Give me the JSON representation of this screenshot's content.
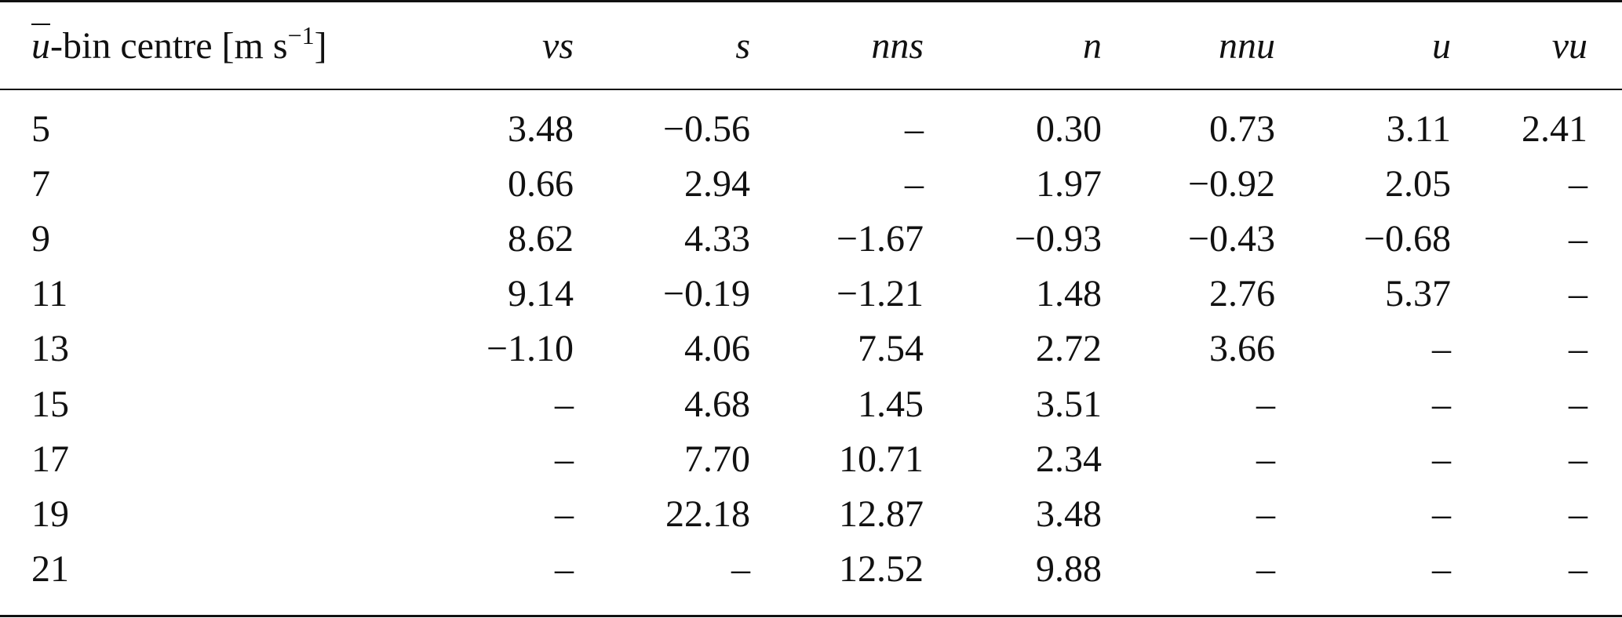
{
  "table": {
    "header": {
      "first": {
        "symbol": "u",
        "text": "-bin centre [m s",
        "exponent": "−1",
        "closing": "]"
      },
      "columns": [
        "vs",
        "s",
        "nns",
        "n",
        "nnu",
        "u",
        "vu"
      ]
    },
    "rows": [
      [
        "5",
        "3.48",
        "−0.56",
        "–",
        "0.30",
        "0.73",
        "3.11",
        "2.41"
      ],
      [
        "7",
        "0.66",
        "2.94",
        "–",
        "1.97",
        "−0.92",
        "2.05",
        "–"
      ],
      [
        "9",
        "8.62",
        "4.33",
        "−1.67",
        "−0.93",
        "−0.43",
        "−0.68",
        "–"
      ],
      [
        "11",
        "9.14",
        "−0.19",
        "−1.21",
        "1.48",
        "2.76",
        "5.37",
        "–"
      ],
      [
        "13",
        "−1.10",
        "4.06",
        "7.54",
        "2.72",
        "3.66",
        "–",
        "–"
      ],
      [
        "15",
        "–",
        "4.68",
        "1.45",
        "3.51",
        "–",
        "–",
        "–"
      ],
      [
        "17",
        "–",
        "7.70",
        "10.71",
        "2.34",
        "–",
        "–",
        "–"
      ],
      [
        "19",
        "–",
        "22.18",
        "12.87",
        "3.48",
        "–",
        "–",
        "–"
      ],
      [
        "21",
        "–",
        "–",
        "12.52",
        "9.88",
        "–",
        "–",
        "–"
      ]
    ]
  }
}
